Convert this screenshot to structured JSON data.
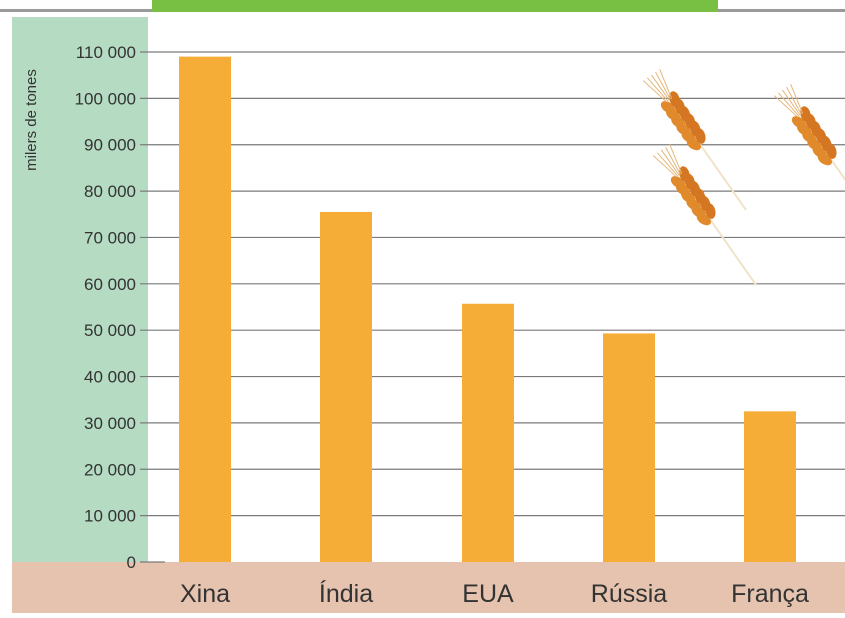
{
  "chart_data": {
    "type": "bar",
    "title": "",
    "xlabel": "",
    "ylabel": "milers de tones",
    "categories": [
      "Xina",
      "Índia",
      "EUA",
      "Rússia",
      "França"
    ],
    "values": [
      109000,
      75500,
      55700,
      49300,
      32500
    ],
    "ylim": [
      0,
      110000
    ],
    "yticks": [
      0,
      10000,
      20000,
      30000,
      40000,
      50000,
      60000,
      70000,
      80000,
      90000,
      100000,
      110000
    ],
    "ytick_labels": [
      "0",
      "10 000",
      "20 000",
      "30 000",
      "40 000",
      "50 000",
      "60 000",
      "70 000",
      "80 000",
      "90 000",
      "100 000",
      "110 000"
    ],
    "grid": true,
    "legend": "none"
  },
  "colors": {
    "bar": "#f5ad38",
    "axis_band": "#b5dcc3",
    "category_band": "#e5c3ae",
    "header_banner": "#77c043",
    "grid": "#7a7a7a",
    "text": "#333333",
    "wheat": "#e08a2c"
  },
  "decorations": {
    "header": "green title banner (text cropped)",
    "illustration": "wheat-ears"
  }
}
